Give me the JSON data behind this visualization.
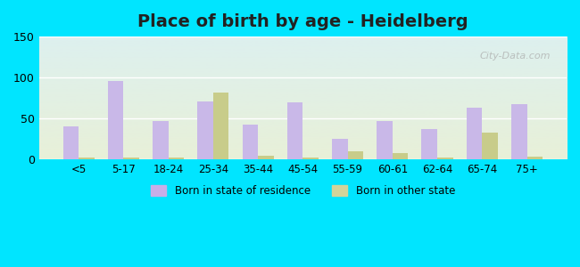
{
  "title": "Place of birth by age - Heidelberg",
  "categories": [
    "<5",
    "5-17",
    "18-24",
    "25-34",
    "35-44",
    "45-54",
    "55-59",
    "60-61",
    "62-64",
    "65-74",
    "75+"
  ],
  "born_in_state": [
    40,
    96,
    47,
    71,
    42,
    70,
    25,
    47,
    37,
    63,
    67
  ],
  "born_other_state": [
    2,
    2,
    2,
    82,
    5,
    2,
    10,
    8,
    2,
    33,
    3
  ],
  "bar_color_state": "#c9b8e8",
  "bar_color_other": "#c8cc8a",
  "legend_color_state": "#c8aee8",
  "legend_color_other": "#d2d49a",
  "ylim": [
    0,
    150
  ],
  "yticks": [
    0,
    50,
    100,
    150
  ],
  "title_fontsize": 14,
  "background_top": "#ddf0ef",
  "background_bottom": "#e8f0d8",
  "outer_background": "#00e5ff",
  "bar_width": 0.35,
  "legend_label_state": "Born in state of residence",
  "legend_label_other": "Born in other state"
}
